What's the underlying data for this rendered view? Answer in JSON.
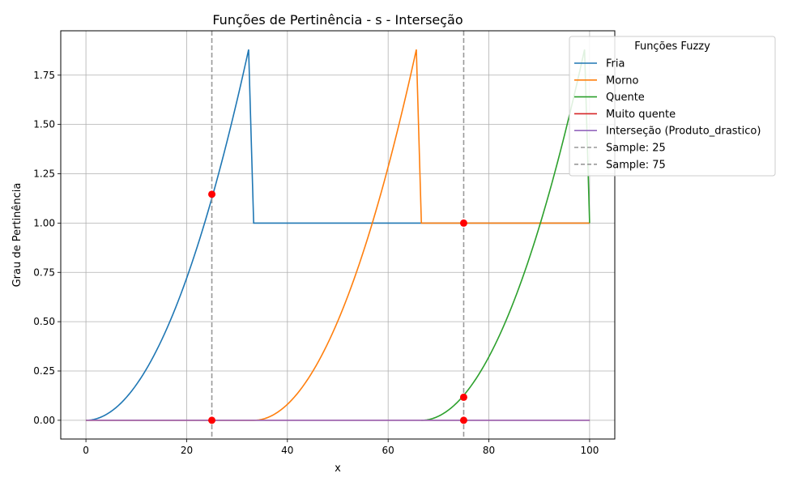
{
  "chart_data": {
    "type": "line",
    "title": "Funções de Pertinência - s - Interseção",
    "xlabel": "x",
    "ylabel": "Grau de Pertinência",
    "xlim": [
      -5,
      105
    ],
    "ylim": [
      -0.095,
      1.975
    ],
    "xticks": [
      0,
      20,
      40,
      60,
      80,
      100
    ],
    "yticks": [
      0.0,
      0.25,
      0.5,
      0.75,
      1.0,
      1.25,
      1.5,
      1.75
    ],
    "ytick_labels": [
      "0.00",
      "0.25",
      "0.50",
      "0.75",
      "1.00",
      "1.25",
      "1.50",
      "1.75"
    ],
    "grid": true,
    "legend": {
      "title": "Funções Fuzzy",
      "placement": "top-right, outside plot"
    },
    "series": [
      {
        "name": "Fria",
        "color": "#1f77b4",
        "segments": [
          {
            "kind": "quad",
            "x0": 0,
            "x1": 32.3,
            "ymax": 1.88
          },
          {
            "kind": "line",
            "points": [
              [
                32.3,
                1.88
              ],
              [
                33.3,
                1.0
              ],
              [
                100,
                1.0
              ]
            ]
          }
        ]
      },
      {
        "name": "Morno",
        "color": "#ff7f0e",
        "segments": [
          {
            "kind": "line",
            "points": [
              [
                0,
                0
              ],
              [
                33.3,
                0
              ]
            ]
          },
          {
            "kind": "quad",
            "x0": 33.3,
            "x1": 65.6,
            "ymax": 1.88
          },
          {
            "kind": "line",
            "points": [
              [
                65.6,
                1.88
              ],
              [
                66.6,
                1.0
              ],
              [
                100,
                1.0
              ]
            ]
          }
        ]
      },
      {
        "name": "Quente",
        "color": "#2ca02c",
        "segments": [
          {
            "kind": "line",
            "points": [
              [
                66.6,
                0
              ],
              [
                66.6,
                0
              ]
            ]
          },
          {
            "kind": "quad",
            "x0": 66.6,
            "x1": 99.0,
            "ymax": 1.88
          },
          {
            "kind": "line",
            "points": [
              [
                99.0,
                1.88
              ],
              [
                100,
                1.0
              ]
            ]
          }
        ]
      },
      {
        "name": "Muito quente",
        "color": "#d62728",
        "segments": [
          {
            "kind": "line",
            "points": [
              [
                0,
                0
              ],
              [
                100,
                0
              ]
            ]
          }
        ]
      },
      {
        "name": "Interseção (Produto_drastico)",
        "color": "#9467bd",
        "segments": [
          {
            "kind": "line",
            "points": [
              [
                0,
                0
              ],
              [
                100,
                0
              ]
            ]
          }
        ]
      }
    ],
    "samples": [
      {
        "name": "Sample: 25",
        "x": 25,
        "color": "#999999"
      },
      {
        "name": "Sample: 75",
        "x": 75,
        "color": "#999999"
      }
    ],
    "sample_points": [
      {
        "x": 25,
        "y": 1.146
      },
      {
        "x": 25,
        "y": 0.0
      },
      {
        "x": 75,
        "y": 1.0
      },
      {
        "x": 75,
        "y": 0.117
      },
      {
        "x": 75,
        "y": 0.0
      }
    ],
    "sample_point_color": "#ff0000"
  }
}
